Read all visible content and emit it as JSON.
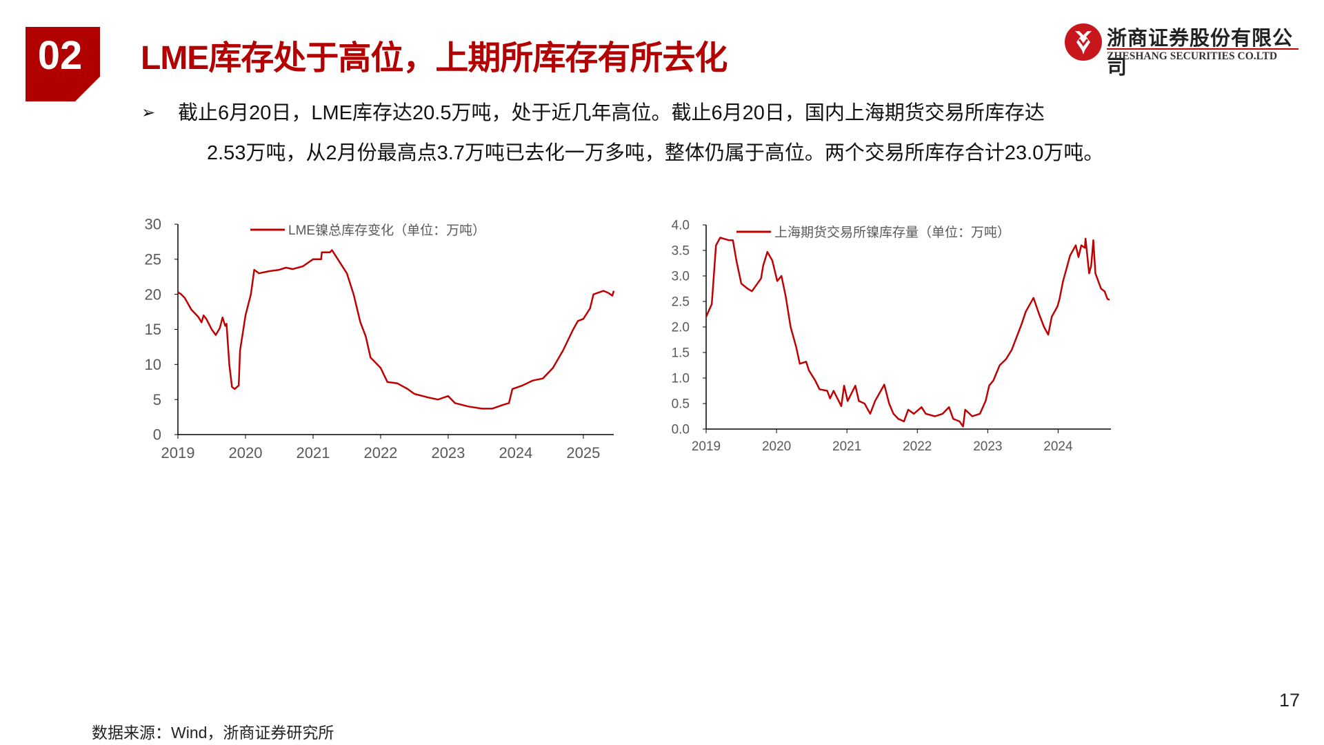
{
  "header": {
    "section_number": "02",
    "title": "LME库存处于高位，上期所库存有所去化"
  },
  "logo": {
    "cn": "浙商证券股份有限公司",
    "en": "ZHESHANG SECURITIES CO.LTD"
  },
  "bullet": {
    "icon": "arrow-bullet-icon",
    "line1": "截止6月20日，LME库存达20.5万吨，处于近几年高位。截止6月20日，国内上海期货交易所库存达",
    "line2": "2.53万吨，从2月份最高点3.7万吨已去化一万多吨，整体仍属于高位。两个交易所库存合计23.0万吨。"
  },
  "colors": {
    "accent": "#b30000",
    "line": "#c00000"
  },
  "chart_data": [
    {
      "type": "line",
      "legend": "LME镍总库存变化（单位：万吨）",
      "legend_position": "top-center",
      "grid": false,
      "xlim": [
        2019,
        2025.45
      ],
      "ylim": [
        0,
        30
      ],
      "xticks": [
        "2019",
        "2020",
        "2021",
        "2022",
        "2023",
        "2024",
        "2025"
      ],
      "yticks": [
        "0",
        "5",
        "10",
        "15",
        "20",
        "25",
        "30"
      ],
      "x": [
        2019.0,
        2019.05,
        2019.1,
        2019.2,
        2019.3,
        2019.35,
        2019.38,
        2019.42,
        2019.5,
        2019.56,
        2019.62,
        2019.66,
        2019.7,
        2019.72,
        2019.76,
        2019.8,
        2019.84,
        2019.9,
        2019.92,
        2019.96,
        2020.0,
        2020.08,
        2020.13,
        2020.2,
        2020.35,
        2020.5,
        2020.6,
        2020.7,
        2020.85,
        2021.0,
        2021.12,
        2021.13,
        2021.25,
        2021.28,
        2021.4,
        2021.5,
        2021.6,
        2021.7,
        2021.78,
        2021.85,
        2022.0,
        2022.1,
        2022.25,
        2022.4,
        2022.5,
        2022.7,
        2022.85,
        2023.0,
        2023.1,
        2023.3,
        2023.5,
        2023.65,
        2023.8,
        2023.9,
        2023.95,
        2024.1,
        2024.25,
        2024.4,
        2024.55,
        2024.7,
        2024.85,
        2024.92,
        2025.0,
        2025.1,
        2025.15,
        2025.3,
        2025.37,
        2025.43,
        2025.45
      ],
      "y": [
        20.3,
        20,
        19.5,
        17.8,
        16.8,
        16,
        17,
        16.5,
        15,
        14.2,
        15.2,
        16.7,
        15.5,
        15.8,
        10,
        6.8,
        6.5,
        7,
        12,
        14.5,
        17,
        20,
        23.5,
        23,
        23.3,
        23.5,
        23.8,
        23.6,
        24,
        25,
        25,
        26,
        26,
        26.3,
        24.5,
        23,
        20,
        16,
        14,
        11,
        9.5,
        7.5,
        7.3,
        6.5,
        5.8,
        5.3,
        5,
        5.5,
        4.5,
        4,
        3.7,
        3.7,
        4.2,
        4.5,
        6.5,
        7,
        7.7,
        8,
        9.5,
        12,
        15,
        16.2,
        16.5,
        18,
        20,
        20.5,
        20.2,
        19.8,
        20.5
      ]
    },
    {
      "type": "line",
      "legend": "上海期货交易所镍库存量（单位：万吨）",
      "legend_position": "top-center",
      "grid": false,
      "xlim": [
        2019,
        2024.75
      ],
      "ylim": [
        0,
        4.0
      ],
      "xticks": [
        "2019",
        "2020",
        "2021",
        "2022",
        "2023",
        "2024"
      ],
      "yticks": [
        "0.0",
        "0.5",
        "1.0",
        "1.5",
        "2.0",
        "2.5",
        "3.0",
        "3.5",
        "4.0"
      ],
      "x": [
        2019.0,
        2019.08,
        2019.14,
        2019.2,
        2019.32,
        2019.38,
        2019.43,
        2019.5,
        2019.59,
        2019.65,
        2019.78,
        2019.81,
        2019.87,
        2019.94,
        2020.01,
        2020.07,
        2020.13,
        2020.2,
        2020.28,
        2020.33,
        2020.42,
        2020.46,
        2020.55,
        2020.61,
        2020.72,
        2020.76,
        2020.81,
        2020.92,
        2020.96,
        2021.01,
        2021.12,
        2021.17,
        2021.25,
        2021.33,
        2021.4,
        2021.53,
        2021.6,
        2021.66,
        2021.73,
        2021.81,
        2021.87,
        2021.95,
        2022.06,
        2022.12,
        2022.25,
        2022.36,
        2022.45,
        2022.51,
        2022.6,
        2022.65,
        2022.68,
        2022.78,
        2022.89,
        2022.97,
        2023.02,
        2023.08,
        2023.17,
        2023.26,
        2023.34,
        2023.48,
        2023.54,
        2023.65,
        2023.73,
        2023.8,
        2023.86,
        2023.91,
        2023.99,
        2024.02,
        2024.07,
        2024.11,
        2024.17,
        2024.25,
        2024.29,
        2024.33,
        2024.38,
        2024.39,
        2024.44,
        2024.47,
        2024.5,
        2024.53,
        2024.61,
        2024.66,
        2024.7,
        2024.73
      ],
      "y": [
        2.2,
        2.45,
        3.6,
        3.75,
        3.7,
        3.7,
        3.3,
        2.85,
        2.75,
        2.7,
        2.95,
        3.2,
        3.47,
        3.3,
        2.9,
        3.0,
        2.6,
        2.0,
        1.6,
        1.28,
        1.32,
        1.15,
        0.95,
        0.78,
        0.75,
        0.6,
        0.75,
        0.45,
        0.85,
        0.55,
        0.85,
        0.55,
        0.5,
        0.3,
        0.55,
        0.87,
        0.5,
        0.3,
        0.2,
        0.15,
        0.38,
        0.3,
        0.43,
        0.3,
        0.25,
        0.3,
        0.43,
        0.2,
        0.15,
        0.05,
        0.38,
        0.25,
        0.3,
        0.55,
        0.85,
        0.95,
        1.25,
        1.37,
        1.55,
        2.05,
        2.3,
        2.57,
        2.25,
        2.0,
        1.85,
        2.2,
        2.4,
        2.55,
        2.9,
        3.1,
        3.4,
        3.6,
        3.37,
        3.6,
        3.55,
        3.73,
        3.05,
        3.2,
        3.7,
        3.05,
        2.75,
        2.7,
        2.55,
        2.53
      ]
    }
  ],
  "footer": {
    "source": "数据来源：Wind，浙商证券研究所",
    "page_number": "17"
  }
}
